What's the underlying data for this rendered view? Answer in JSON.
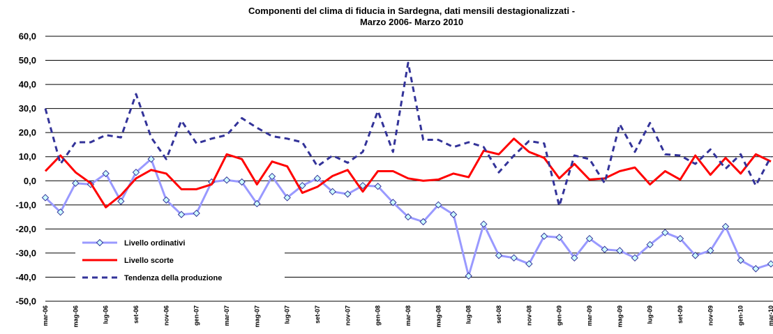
{
  "chart_data": {
    "type": "line",
    "title": [
      "Componenti del clima di fiducia in Sardegna, dati mensili destagionalizzati -",
      "Marzo 2006- Marzo 2010"
    ],
    "categories": [
      "mar-06",
      null,
      "mag-06",
      null,
      "lug-06",
      null,
      "set-06",
      null,
      "nov-06",
      null,
      "gen-07",
      null,
      "mar-07",
      null,
      "mag-07",
      null,
      "lug-07",
      null,
      "set-07",
      null,
      "nov-07",
      null,
      "gen-08",
      null,
      "mar-08",
      null,
      "mag-08",
      null,
      "lug-08",
      null,
      "set-08",
      null,
      "nov-08",
      null,
      "gen-09",
      null,
      "mar-09",
      null,
      "mag-09",
      null,
      "lug-09",
      null,
      "set-09",
      null,
      "nov-09",
      null,
      "gen-10",
      null,
      "mar-10"
    ],
    "series": [
      {
        "name": "Livello ordinativi",
        "color": "#9999ff",
        "marker": "diamond",
        "values": [
          -7,
          -13,
          -1,
          -1.5,
          3,
          -8.5,
          3.5,
          9,
          -8,
          -14,
          -13.5,
          -0.5,
          0.3,
          -0.5,
          -9.5,
          1.8,
          -7,
          -2,
          1,
          -4.5,
          -5.5,
          -2,
          -2.3,
          -9,
          -15,
          -17,
          -10,
          -14,
          -39.5,
          -18,
          -31,
          -32,
          -34.5,
          -23,
          -23.5,
          -32,
          -24,
          -28.5,
          -29,
          -32,
          -26.5,
          -21.5,
          -24,
          -31,
          -29,
          -19,
          -33,
          -36.5,
          -34.5
        ]
      },
      {
        "name": "Livello scorte",
        "color": "#ff0000",
        "values": [
          4,
          10.5,
          3.5,
          -1,
          -11,
          -6,
          1,
          4.5,
          3,
          -3.5,
          -3.5,
          -1.5,
          11,
          9,
          -1.5,
          8,
          6,
          -5,
          -2.5,
          2,
          4.5,
          -4.5,
          4,
          4,
          1,
          0,
          0.5,
          3,
          1.5,
          12.5,
          11,
          17.5,
          12,
          9.5,
          1,
          7,
          0.5,
          1,
          4,
          5.5,
          -1.5,
          4,
          0.5,
          10.5,
          2.5,
          9.5,
          3,
          11,
          8
        ]
      },
      {
        "name": "Tendenza della produzione",
        "color": "#333399",
        "dashed": true,
        "values": [
          30,
          7,
          16,
          16,
          19,
          18,
          36,
          18,
          9,
          25,
          15.5,
          17.5,
          19,
          26,
          22,
          18.5,
          17.5,
          16,
          6,
          10.5,
          7.5,
          12,
          29,
          12,
          49,
          17,
          17,
          14,
          16,
          14,
          3.5,
          10.5,
          16.5,
          15.5,
          -10.5,
          10.5,
          9,
          -1,
          23.5,
          12,
          24,
          11,
          10.5,
          7,
          13,
          5,
          11,
          -2,
          10
        ]
      }
    ],
    "ylim": [
      -50,
      60
    ],
    "yticks": [
      {
        "value": -50,
        "label": "-50,0"
      },
      {
        "value": -40,
        "label": "-40,0"
      },
      {
        "value": -30,
        "label": "-30,0"
      },
      {
        "value": -20,
        "label": "-20,0"
      },
      {
        "value": -10,
        "label": "-10,0"
      },
      {
        "value": 0,
        "label": "0,0"
      },
      {
        "value": 10,
        "label": "10,0"
      },
      {
        "value": 20,
        "label": "20,0"
      },
      {
        "value": 30,
        "label": "30,0"
      },
      {
        "value": 40,
        "label": "40,0"
      },
      {
        "value": 50,
        "label": "50,0"
      },
      {
        "value": 60,
        "label": "60,0"
      }
    ],
    "grid": true,
    "legend": "lower left"
  }
}
